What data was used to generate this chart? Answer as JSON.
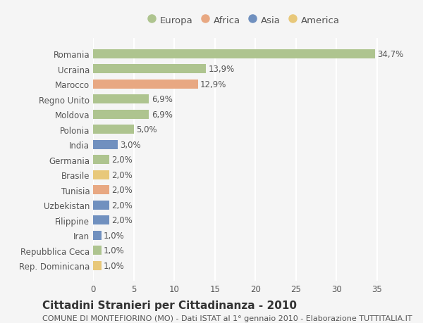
{
  "countries": [
    "Romania",
    "Ucraina",
    "Marocco",
    "Regno Unito",
    "Moldova",
    "Polonia",
    "India",
    "Germania",
    "Brasile",
    "Tunisia",
    "Uzbekistan",
    "Filippine",
    "Iran",
    "Repubblica Ceca",
    "Rep. Dominicana"
  ],
  "values": [
    34.7,
    13.9,
    12.9,
    6.9,
    6.9,
    5.0,
    3.0,
    2.0,
    2.0,
    2.0,
    2.0,
    2.0,
    1.0,
    1.0,
    1.0
  ],
  "labels": [
    "34,7%",
    "13,9%",
    "12,9%",
    "6,9%",
    "6,9%",
    "5,0%",
    "3,0%",
    "2,0%",
    "2,0%",
    "2,0%",
    "2,0%",
    "2,0%",
    "1,0%",
    "1,0%",
    "1,0%"
  ],
  "regions": [
    "Europa",
    "Europa",
    "Africa",
    "Europa",
    "Europa",
    "Europa",
    "Asia",
    "Europa",
    "America",
    "Africa",
    "Asia",
    "Asia",
    "Asia",
    "Europa",
    "America"
  ],
  "region_colors": {
    "Europa": "#aec48f",
    "Africa": "#e8a882",
    "Asia": "#7090bf",
    "America": "#e8c87a"
  },
  "legend_order": [
    "Europa",
    "Africa",
    "Asia",
    "America"
  ],
  "background_color": "#f5f5f5",
  "title": "Cittadini Stranieri per Cittadinanza - 2010",
  "subtitle": "COMUNE DI MONTEFIORINO (MO) - Dati ISTAT al 1° gennaio 2010 - Elaborazione TUTTITALIA.IT",
  "xlim": [
    0,
    37
  ],
  "xticks": [
    0,
    5,
    10,
    15,
    20,
    25,
    30,
    35
  ],
  "grid_color": "#ffffff",
  "bar_height": 0.6,
  "label_fontsize": 8.5,
  "title_fontsize": 11,
  "subtitle_fontsize": 8,
  "tick_fontsize": 8.5
}
